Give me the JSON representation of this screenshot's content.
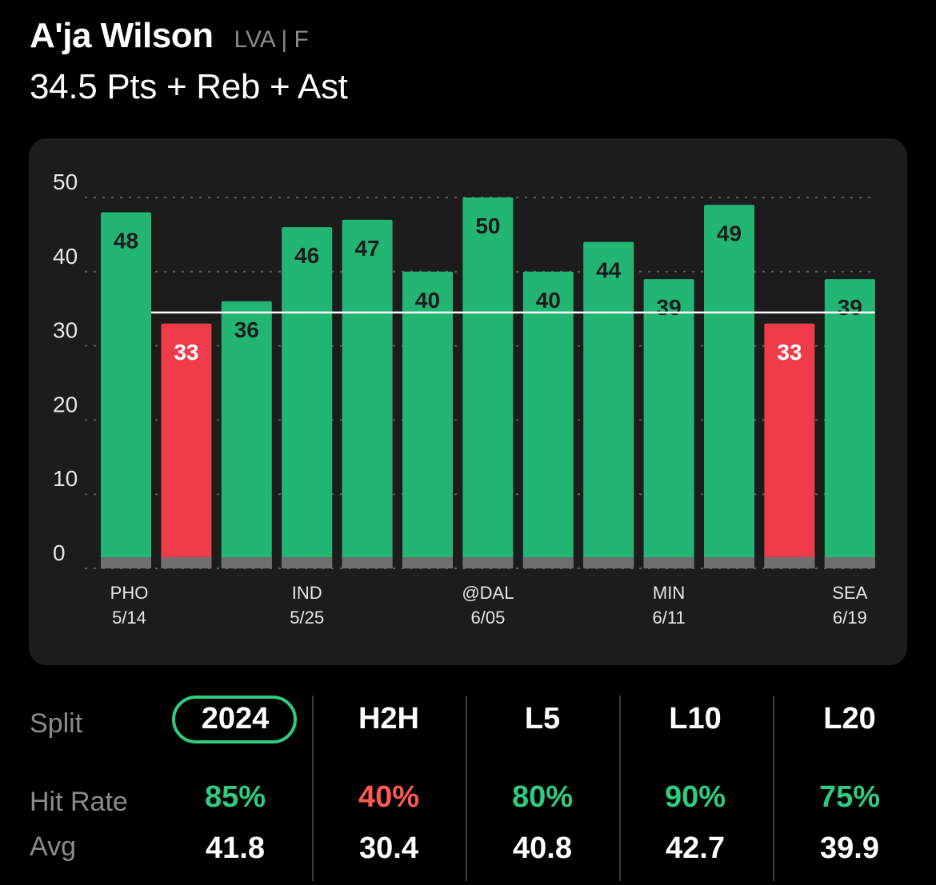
{
  "player": {
    "name": "A'ja Wilson",
    "team_pos": "LVA | F",
    "prop": "34.5 Pts + Reb + Ast"
  },
  "colors": {
    "over": "#22b573",
    "under": "#ef3b4a",
    "line": "#ffffff",
    "accent": "#2ecc7f",
    "miss": "#ff5a52"
  },
  "chart_data": {
    "type": "bar",
    "line_value": 34.5,
    "ylim": [
      0,
      50
    ],
    "yticks": [
      0,
      10,
      20,
      30,
      40,
      50
    ],
    "grid": true,
    "values": [
      48,
      33,
      36,
      46,
      47,
      40,
      50,
      40,
      44,
      39,
      49,
      33,
      39
    ],
    "x_labels": [
      {
        "index": 0,
        "team": "PHO",
        "date": "5/14"
      },
      {
        "index": 3,
        "team": "IND",
        "date": "5/25"
      },
      {
        "index": 6,
        "team": "@DAL",
        "date": "6/05"
      },
      {
        "index": 9,
        "team": "MIN",
        "date": "6/11"
      },
      {
        "index": 12,
        "team": "SEA",
        "date": "6/19"
      }
    ]
  },
  "stats": {
    "split_label": "Split",
    "hit_rate_label": "Hit Rate",
    "avg_label": "Avg",
    "columns": [
      {
        "split": "2024",
        "hit_rate": "85%",
        "avg": "41.8",
        "hit": true,
        "active": true
      },
      {
        "split": "H2H",
        "hit_rate": "40%",
        "avg": "30.4",
        "hit": false,
        "active": false
      },
      {
        "split": "L5",
        "hit_rate": "80%",
        "avg": "40.8",
        "hit": true,
        "active": false
      },
      {
        "split": "L10",
        "hit_rate": "90%",
        "avg": "42.7",
        "hit": true,
        "active": false
      },
      {
        "split": "L20",
        "hit_rate": "75%",
        "avg": "39.9",
        "hit": true,
        "active": false
      }
    ]
  }
}
